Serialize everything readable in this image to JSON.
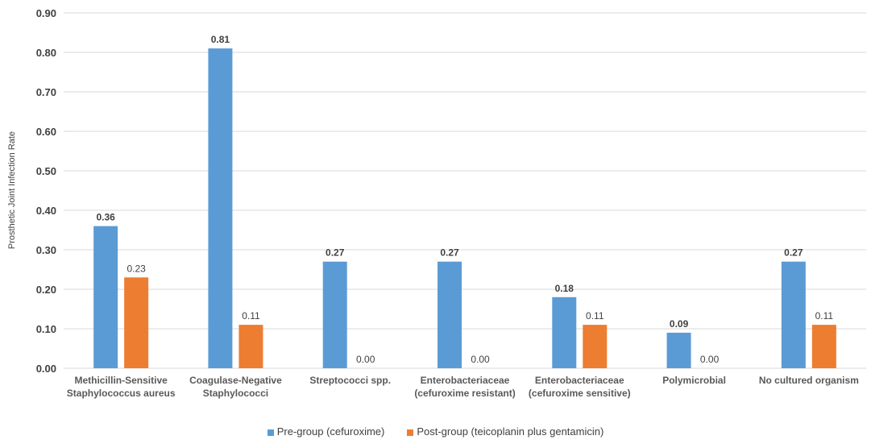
{
  "chart_data": {
    "type": "bar",
    "title": "",
    "xlabel": "",
    "ylabel": "Prosthetic Joint Infection Rate",
    "ylim": [
      0,
      0.9
    ],
    "yticks": [
      "0.00",
      "0.10",
      "0.20",
      "0.30",
      "0.40",
      "0.50",
      "0.60",
      "0.70",
      "0.80",
      "0.90"
    ],
    "grid": true,
    "legend_position": "bottom",
    "categories": [
      [
        "Methicillin-Sensitive",
        "Staphylococcus aureus"
      ],
      [
        "Coagulase-Negative",
        "Staphylococci"
      ],
      [
        "Streptococci spp."
      ],
      [
        "Enterobacteriaceae",
        "(cefuroxime resistant)"
      ],
      [
        "Enterobacteriaceae",
        "(cefuroxime sensitive)"
      ],
      [
        "Polymicrobial"
      ],
      [
        "No cultured organism"
      ]
    ],
    "series": [
      {
        "name": "Pre-group (cefuroxime)",
        "color": "#5b9bd5",
        "values": [
          0.36,
          0.81,
          0.27,
          0.27,
          0.18,
          0.09,
          0.27
        ],
        "labels": [
          "0.36",
          "0.81",
          "0.27",
          "0.27",
          "0.18",
          "0.09",
          "0.27"
        ]
      },
      {
        "name": "Post-group (teicoplanin plus gentamicin)",
        "color": "#ed7d31",
        "values": [
          0.23,
          0.11,
          0.0,
          0.0,
          0.11,
          0.0,
          0.11
        ],
        "labels": [
          "0.23",
          "0.11",
          "0.00",
          "0.00",
          "0.11",
          "0.00",
          "0.11"
        ]
      }
    ]
  }
}
